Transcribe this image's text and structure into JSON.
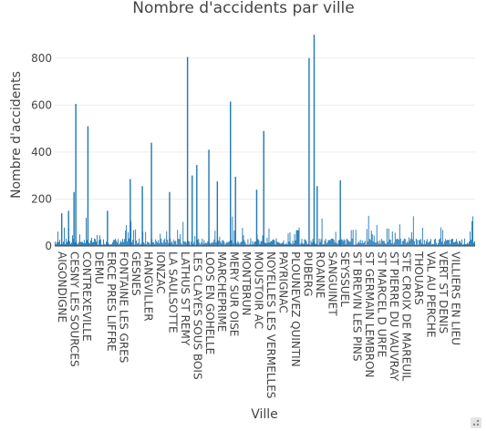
{
  "chart_data": {
    "type": "bar",
    "title": "Nombre d'accidents par ville",
    "xlabel": "Ville",
    "ylabel": "Nombre d'accidents",
    "ylim": [
      0,
      900
    ],
    "yticks": [
      0,
      200,
      400,
      600,
      800
    ],
    "bar_color": "#1f77b4",
    "categories": [
      "AIGONDIGNE",
      "CESNY LES SOURCES",
      "CONTREXEVILLE",
      "DEMU",
      "ERCE PRES LIFFRE",
      "FONTAINE LES GRES",
      "GESNES",
      "HANGVILLER",
      "IONZAC",
      "LA SAULSOTTE",
      "LATHUS ST REMY",
      "LES CLAYES SOUS BOIS",
      "LOOS EN GOHELLE",
      "MARCHEPRIME",
      "MERY SUR OISE",
      "MONTBRUN",
      "MOUSTOIR AC",
      "NOYELLES LES VERMELLES",
      "PAYRIGNAC",
      "PLOUNEVEZ QUINTIN",
      "PUBERG",
      "ROANNE",
      "SANGUINET",
      "SEYSSUEL",
      "ST BREVIN LES PINS",
      "ST GERMAIN LEMBRON",
      "ST MARCEL D URFE",
      "ST PIERRE DU VAUVRAY",
      "STE CROIX DE MAREUIL",
      "THOUARS",
      "VAL AU PERCHE",
      "VERT ST DENIS",
      "VILLIERS EN LIEU"
    ],
    "series": [
      {
        "name": "Nombre d'accidents",
        "spikes": [
          {
            "position": 0.018,
            "value": 140
          },
          {
            "position": 0.052,
            "value": 150
          },
          {
            "position": 0.079,
            "value": 230
          },
          {
            "position": 0.088,
            "value": 605
          },
          {
            "position": 0.148,
            "value": 510
          },
          {
            "position": 0.245,
            "value": 150
          },
          {
            "position": 0.358,
            "value": 285
          },
          {
            "position": 0.418,
            "value": 255
          },
          {
            "position": 0.463,
            "value": 440
          },
          {
            "position": 0.553,
            "value": 230
          },
          {
            "position": 0.642,
            "value": 805
          },
          {
            "position": 0.665,
            "value": 300
          },
          {
            "position": 0.688,
            "value": 345
          },
          {
            "position": 0.748,
            "value": 410
          },
          {
            "position": 0.79,
            "value": 275
          },
          {
            "position": 0.855,
            "value": 615
          },
          {
            "position": 0.88,
            "value": 295
          },
          {
            "position": 0.985,
            "value": 240
          },
          {
            "position": 1.02,
            "value": 490
          },
          {
            "position": 1.245,
            "value": 800
          },
          {
            "position": 1.27,
            "value": 900
          },
          {
            "position": 1.285,
            "value": 255
          },
          {
            "position": 1.4,
            "value": 280
          }
        ]
      }
    ]
  }
}
